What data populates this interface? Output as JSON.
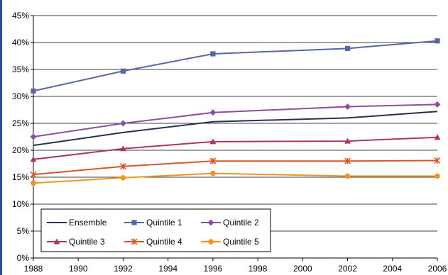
{
  "chart_data": {
    "type": "line",
    "title": "",
    "xlabel": "",
    "ylabel": "",
    "x": [
      1988,
      1992,
      1996,
      2002,
      2006
    ],
    "xlim": [
      1988,
      2006
    ],
    "xticks": [
      "1988",
      "1990",
      "1992",
      "1994",
      "1996",
      "1998",
      "2000",
      "2002",
      "2004",
      "2006"
    ],
    "ylim": [
      0,
      45
    ],
    "yticks": [
      "0%",
      "5%",
      "10%",
      "15%",
      "20%",
      "25%",
      "30%",
      "35%",
      "40%",
      "45%"
    ],
    "grid": "horizontal",
    "legend_position": "bottom-left",
    "series": [
      {
        "name": "Ensemble",
        "values": [
          20.9,
          23.3,
          25.3,
          26.0,
          27.2
        ],
        "color": "#26334f",
        "marker": "none"
      },
      {
        "name": "Quintile 1",
        "values": [
          31.0,
          34.7,
          37.9,
          38.9,
          40.3
        ],
        "color": "#5866a8",
        "marker": "square"
      },
      {
        "name": "Quintile 2",
        "values": [
          22.5,
          25.0,
          27.0,
          28.1,
          28.5
        ],
        "color": "#8c4f9d",
        "marker": "diamond"
      },
      {
        "name": "Quintile 3",
        "values": [
          18.3,
          20.3,
          21.6,
          21.7,
          22.4
        ],
        "color": "#b03366",
        "marker": "triangle"
      },
      {
        "name": "Quintile 4",
        "values": [
          15.5,
          17.0,
          18.0,
          18.0,
          18.1
        ],
        "color": "#d9552b",
        "marker": "star"
      },
      {
        "name": "Quintile 5",
        "values": [
          13.9,
          14.9,
          15.7,
          15.2,
          15.2
        ],
        "color": "#f0961e",
        "marker": "circle"
      }
    ]
  }
}
